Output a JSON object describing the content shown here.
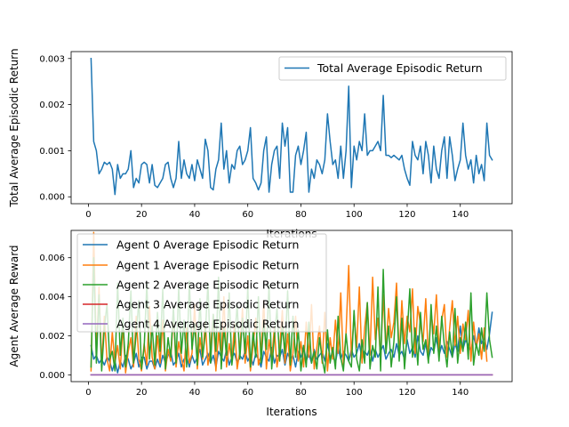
{
  "chart_data": [
    {
      "type": "line",
      "xlabel": "Iterations",
      "ylabel": "Total Average Episodic Return",
      "xlim": [
        -6.5,
        159.5
      ],
      "ylim": [
        -0.00015,
        0.00315
      ],
      "xticks": [
        0,
        20,
        40,
        60,
        80,
        100,
        120,
        140
      ],
      "yticks": [
        0.0,
        0.001,
        0.002,
        0.003
      ],
      "ytick_labels": [
        "0.000",
        "0.001",
        "0.002",
        "0.003"
      ],
      "legend": "upper right",
      "series": [
        {
          "name": "Total Average Episodic Return",
          "color": "#1f77b4",
          "x_start": 1,
          "values": [
            0.003,
            0.0012,
            0.001,
            0.0005,
            0.0006,
            0.00075,
            0.0007,
            0.00075,
            0.0006,
            5e-05,
            0.0007,
            0.0004,
            0.0005,
            0.0005,
            0.0006,
            0.001,
            0.0002,
            0.0004,
            0.0003,
            0.0007,
            0.00075,
            0.0007,
            0.0003,
            0.0007,
            0.00025,
            0.0002,
            0.0003,
            0.0004,
            0.0007,
            0.00075,
            0.0004,
            0.0002,
            0.0004,
            0.0012,
            0.0004,
            0.0008,
            0.0005,
            0.0004,
            0.0007,
            0.00035,
            0.0008,
            0.0006,
            0.0004,
            0.00125,
            0.001,
            0.0002,
            0.00015,
            0.0006,
            0.0008,
            0.0016,
            0.0006,
            0.001,
            0.0003,
            0.0007,
            0.0006,
            0.001,
            0.0011,
            0.0007,
            0.0008,
            0.001,
            0.0015,
            0.0004,
            0.0003,
            0.00015,
            0.0003,
            0.001,
            0.0013,
            0.0001,
            0.0007,
            0.001,
            0.0011,
            0.0004,
            0.0016,
            0.0011,
            0.0015,
            0.0001,
            0.0001,
            0.0009,
            0.0011,
            0.0007,
            0.001,
            0.0014,
            0.0001,
            0.0006,
            0.0004,
            0.0008,
            0.0007,
            0.0005,
            0.0008,
            0.0018,
            0.0012,
            0.0007,
            0.0008,
            0.0004,
            0.0011,
            0.0004,
            0.001,
            0.0024,
            0.0002,
            0.0011,
            0.0008,
            0.0012,
            0.001,
            0.0018,
            0.0009,
            0.001,
            0.001,
            0.0011,
            0.0012,
            0.001,
            0.0022,
            0.0009,
            0.0009,
            0.00085,
            0.0009,
            0.00085,
            0.0008,
            0.0009,
            0.0006,
            0.0004,
            0.00025,
            0.0012,
            0.0009,
            0.0008,
            0.0011,
            0.0005,
            0.0012,
            0.0009,
            0.0003,
            0.0011,
            0.0006,
            0.0004,
            0.001,
            0.0013,
            0.0004,
            0.0013,
            0.0009,
            0.00035,
            0.0006,
            0.0008,
            0.0016,
            0.0009,
            0.0006,
            0.0008,
            0.0003,
            0.0009,
            0.0005,
            0.0007,
            0.00035,
            0.0016,
            0.0009,
            0.0008
          ]
        }
      ]
    },
    {
      "type": "line",
      "xlabel": "Iterations",
      "ylabel": "Agent Average Reward",
      "xlim": [
        -6.5,
        159.5
      ],
      "ylim": [
        -0.00035,
        0.0074
      ],
      "xticks": [
        0,
        20,
        40,
        60,
        80,
        100,
        120,
        140
      ],
      "yticks": [
        0.0,
        0.002,
        0.004,
        0.006
      ],
      "ytick_labels": [
        "0.000",
        "0.002",
        "0.004",
        "0.006"
      ],
      "legend": "upper left",
      "series": [
        {
          "name": "Agent 0 Average Episodic Return",
          "color": "#1f77b4",
          "x_start": 1,
          "values": [
            0.0015,
            0.0008,
            0.001,
            0.0006,
            0.0008,
            0.0005,
            0.0009,
            0.0007,
            0.0002,
            0.0007,
            0.0001,
            0.0007,
            0.0004,
            0.001,
            0.0008,
            0.0003,
            0.0006,
            0.0011,
            0.0004,
            0.0009,
            0.0009,
            0.0003,
            0.0007,
            0.0007,
            0.0003,
            0.0008,
            0.0004,
            0.001,
            0.0006,
            0.001,
            0.0012,
            0.0005,
            0.0007,
            0.0011,
            0.0004,
            0.0008,
            0.0009,
            0.0004,
            0.001,
            0.0006,
            0.0009,
            0.0013,
            0.0005,
            0.0008,
            0.0011,
            0.0006,
            0.001,
            0.0004,
            0.0012,
            0.0009,
            0.0007,
            0.0013,
            0.0005,
            0.0009,
            0.0011,
            0.0006,
            0.001,
            0.0008,
            0.0012,
            0.0007,
            0.001,
            0.0005,
            0.0011,
            0.0008,
            0.0004,
            0.0012,
            0.0009,
            0.0007,
            0.0014,
            0.0006,
            0.001,
            0.0009,
            0.0013,
            0.0005,
            0.0011,
            0.0008,
            0.001,
            0.0004,
            0.0012,
            0.0009,
            0.0015,
            0.0007,
            0.0011,
            0.0006,
            0.0013,
            0.0008,
            0.001,
            0.0012,
            0.0007,
            0.0016,
            0.0009,
            0.0011,
            0.0006,
            0.0014,
            0.0008,
            0.0012,
            0.001,
            0.0007,
            0.0013,
            0.0009,
            0.0011,
            0.0016,
            0.0008,
            0.0012,
            0.001,
            0.0014,
            0.0007,
            0.0013,
            0.0009,
            0.0012,
            0.0015,
            0.0008,
            0.0011,
            0.0013,
            0.0009,
            0.0016,
            0.001,
            0.0012,
            0.0008,
            0.0018,
            0.0011,
            0.0014,
            0.0009,
            0.002,
            0.0012,
            0.001,
            0.0016,
            0.0008,
            0.0014,
            0.0012,
            0.0019,
            0.001,
            0.0015,
            0.0011,
            0.0017,
            0.0013,
            0.0009,
            0.0016,
            0.0012,
            0.0025,
            0.0013,
            0.0018,
            0.0015,
            0.0012,
            0.002,
            0.0014,
            0.0024,
            0.0016,
            0.0019,
            0.0013,
            0.0021,
            0.0032
          ]
        },
        {
          "name": "Agent 1 Average Episodic Return",
          "color": "#ff7f0e",
          "x_start": 1,
          "values": [
            0.0002,
            0.0073,
            0.001,
            0.0045,
            0.0005,
            0.003,
            0.0008,
            0.0002,
            0.0022,
            0.0006,
            0.0015,
            0.0003,
            0.0025,
            0.0001,
            0.0012,
            0.0019,
            0.0004,
            0.003,
            0.0008,
            0.0002,
            0.0016,
            0.0005,
            0.0035,
            0.0009,
            0.0003,
            0.002,
            0.0006,
            0.0028,
            0.0002,
            0.0013,
            0.0007,
            0.0032,
            0.0004,
            0.0017,
            0.0009,
            0.0002,
            0.0024,
            0.0006,
            0.0011,
            0.0036,
            0.0003,
            0.0019,
            0.0008,
            0.0027,
            0.0005,
            0.0014,
            0.0031,
            0.0002,
            0.0022,
            0.0009,
            0.004,
            0.0004,
            0.0016,
            0.0007,
            0.0026,
            0.0003,
            0.0012,
            0.0034,
            0.0006,
            0.002,
            0.0002,
            0.0015,
            0.0029,
            0.0005,
            0.001,
            0.0038,
            0.0003,
            0.0018,
            0.0008,
            0.0024,
            0.0004,
            0.0013,
            0.0033,
            0.0006,
            0.0021,
            0.0002,
            0.0011,
            0.003,
            0.0007,
            0.0017,
            0.0004,
            0.0027,
            0.0009,
            0.0036,
            0.0003,
            0.0014,
            0.0025,
            0.0006,
            0.0032,
            0.0002,
            0.0019,
            0.0008,
            0.0028,
            0.0011,
            0.0042,
            0.0005,
            0.0022,
            0.0056,
            0.0009,
            0.0031,
            0.0014,
            0.0045,
            0.0006,
            0.0024,
            0.0037,
            0.001,
            0.005,
            0.0018,
            0.0029,
            0.0008,
            0.0041,
            0.0013,
            0.0034,
            0.0019,
            0.0027,
            0.0047,
            0.0009,
            0.0038,
            0.0016,
            0.003,
            0.0022,
            0.0044,
            0.0011,
            0.0035,
            0.0026,
            0.0017,
            0.0039,
            0.0008,
            0.0032,
            0.0021,
            0.0041,
            0.0013,
            0.0028,
            0.0036,
            0.0009,
            0.0024,
            0.0038,
            0.0015,
            0.003,
            0.0011,
            0.0026,
            0.0018,
            0.0033,
            0.0007,
            0.0027,
            0.0014,
            0.0021,
            0.0008,
            0.0024,
            0.0007
          ]
        },
        {
          "name": "Agent 2 Average Episodic Return",
          "color": "#2ca02c",
          "x_start": 1,
          "values": [
            0.0004,
            0.006,
            0.0006,
            0.0041,
            0.0002,
            0.0024,
            0.0036,
            0.0008,
            0.0012,
            0.0002,
            0.0047,
            0.001,
            0.0029,
            0.0004,
            0.0016,
            0.0043,
            0.0006,
            0.0021,
            0.0038,
            0.0003,
            0.0014,
            0.0047,
            0.0008,
            0.0025,
            0.0005,
            0.0032,
            0.0012,
            0.0044,
            0.0003,
            0.0019,
            0.0009,
            0.0035,
            0.0006,
            0.0045,
            0.0011,
            0.0028,
            0.0004,
            0.0048,
            0.0013,
            0.0026,
            0.0005,
            0.0039,
            0.0009,
            0.0021,
            0.0047,
            0.0006,
            0.0031,
            0.0012,
            0.005,
            0.0003,
            0.0024,
            0.001,
            0.0042,
            0.0005,
            0.0017,
            0.0036,
            0.0008,
            0.0029,
            0.0011,
            0.0045,
            0.0004,
            0.0022,
            0.0009,
            0.004,
            0.0006,
            0.0027,
            0.0013,
            0.0046,
            0.0003,
            0.0019,
            0.0034,
            0.0007,
            0.0025,
            0.0011,
            0.0043,
            0.0005,
            0.003,
            0.0009,
            0.0023,
            0.0002,
            0.0015,
            0.0004,
            0.0027,
            0.0006,
            0.0012,
            0.0003,
            0.0019,
            0.0008,
            0.0001,
            0.0023,
            0.0006,
            0.0014,
            0.0003,
            0.003,
            0.0009,
            0.0002,
            0.0021,
            0.0007,
            0.0004,
            0.0033,
            0.0008,
            0.0002,
            0.0018,
            0.0006,
            0.0037,
            0.0003,
            0.0015,
            0.0009,
            0.0045,
            0.0002,
            0.0054,
            0.0011,
            0.0025,
            0.0004,
            0.0017,
            0.004,
            0.0007,
            0.0029,
            0.0003,
            0.0021,
            0.0044,
            0.0009,
            0.0024,
            0.0005,
            0.0032,
            0.0013,
            0.0018,
            0.0006,
            0.0036,
            0.0011,
            0.0025,
            0.0007,
            0.003,
            0.0015,
            0.0004,
            0.0022,
            0.0009,
            0.0034,
            0.0006,
            0.0019,
            0.0012,
            0.0027,
            0.0008,
            0.0042,
            0.0005,
            0.0016,
            0.001,
            0.0024,
            0.0012,
            0.0042,
            0.0018,
            0.0009
          ]
        },
        {
          "name": "Agent 3 Average Episodic Return",
          "color": "#d62728",
          "x_start": 1,
          "constant": 0.0,
          "count": 152
        },
        {
          "name": "Agent 4 Average Episodic Return",
          "color": "#9467bd",
          "x_start": 1,
          "constant": 0.0,
          "count": 152
        }
      ]
    }
  ]
}
